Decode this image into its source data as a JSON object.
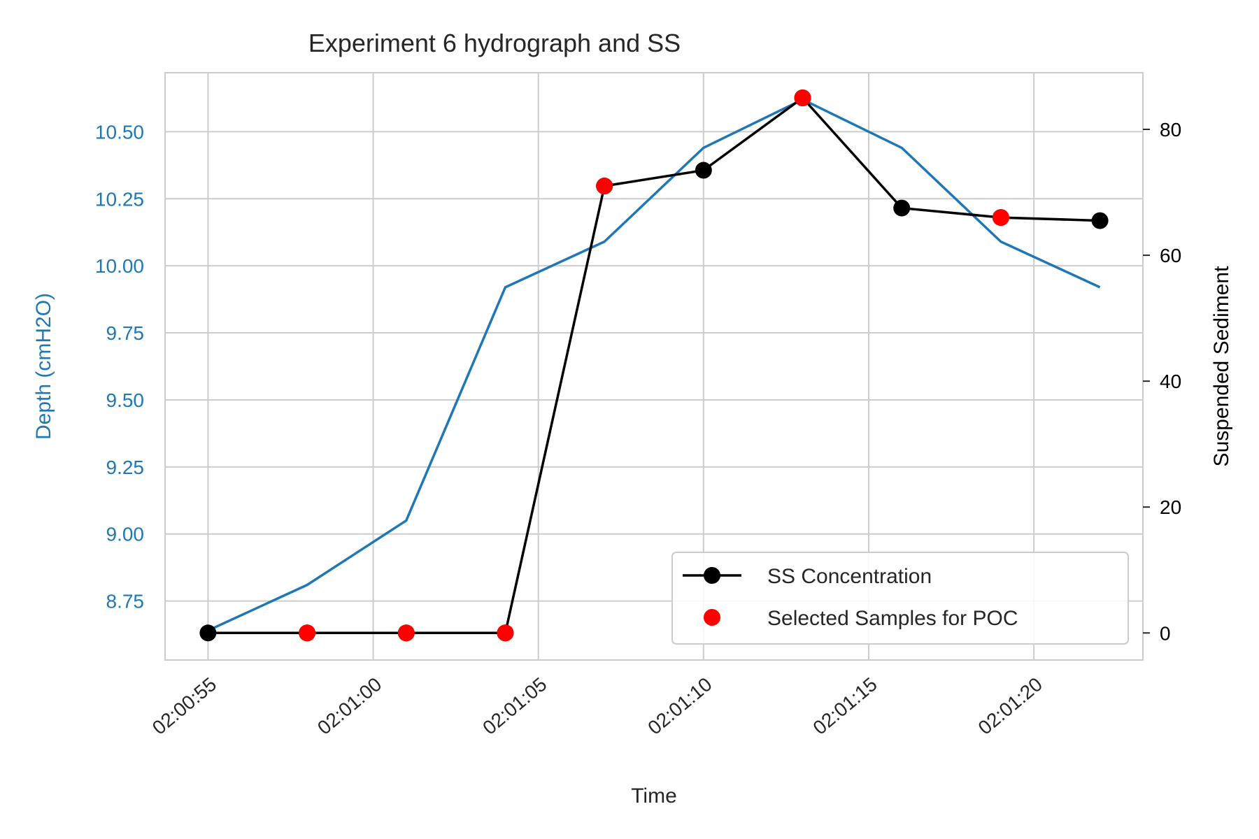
{
  "chart_data": {
    "type": "line",
    "title": "Experiment 6 hydrograph and SS",
    "xlabel": "Time",
    "ylabel_left": "Depth (cmH2O)",
    "ylabel_right": "Suspended Sediment",
    "x_ticks": [
      "02:00:55",
      "02:01:00",
      "02:01:05",
      "02:01:10",
      "02:01:15",
      "02:01:20"
    ],
    "y_left_ticks": [
      "8.75",
      "9.00",
      "9.25",
      "9.50",
      "9.75",
      "10.00",
      "10.25",
      "10.50"
    ],
    "y_right_ticks": [
      "0",
      "20",
      "40",
      "60",
      "80"
    ],
    "xlim": [
      "02:00:53.7",
      "02:01:23.3"
    ],
    "ylim_left": [
      8.53,
      10.72
    ],
    "ylim_right": [
      -4.3,
      89.0
    ],
    "grid": true,
    "legend_position": "lower-right",
    "colors": {
      "depth": "#1f77b4",
      "ss": "#000000",
      "selected": "#ff0000",
      "grid": "#cccccc",
      "spine": "#cccccc",
      "left_axis_text": "#1f77b4",
      "right_axis_text": "#000000"
    },
    "series": [
      {
        "name": "",
        "axis": "left",
        "style": "line",
        "x": [
          "02:00:55",
          "02:00:58",
          "02:01:01",
          "02:01:04",
          "02:01:07",
          "02:01:10",
          "02:01:13",
          "02:01:16",
          "02:01:19",
          "02:01:22"
        ],
        "y": [
          8.64,
          8.81,
          9.05,
          9.92,
          10.09,
          10.44,
          10.62,
          10.44,
          10.09,
          9.92
        ]
      },
      {
        "name": "SS Concentration",
        "axis": "right",
        "style": "line-marker",
        "x": [
          "02:00:55",
          "02:00:58",
          "02:01:01",
          "02:01:04",
          "02:01:07",
          "02:01:10",
          "02:01:13",
          "02:01:16",
          "02:01:19",
          "02:01:22"
        ],
        "y": [
          0,
          0,
          0,
          0,
          71,
          73.5,
          85,
          67.5,
          66,
          65.5
        ]
      },
      {
        "name": "Selected Samples for POC",
        "axis": "right",
        "style": "marker",
        "x": [
          "02:00:58",
          "02:01:01",
          "02:01:04",
          "02:01:07",
          "02:01:13",
          "02:01:19"
        ],
        "y": [
          0,
          0,
          0,
          71,
          85,
          66
        ]
      }
    ]
  }
}
